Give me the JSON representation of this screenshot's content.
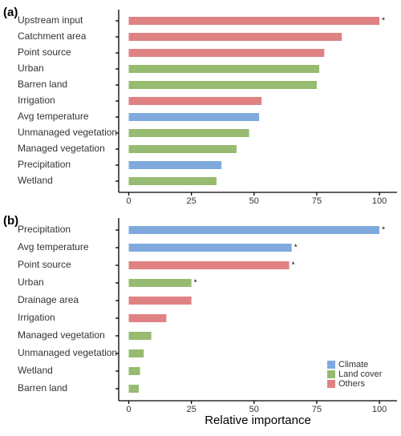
{
  "chart_data": [
    {
      "type": "bar",
      "panel_label": "(a)",
      "categories": [
        "Upstream input",
        "Catchment area",
        "Point source",
        "Urban",
        "Barren land",
        "Irrigation",
        "Avg temperature",
        "Unmanaged vegetation",
        "Managed vegetation",
        "Precipitation",
        "Wetland"
      ],
      "values": [
        100,
        85,
        78,
        76,
        75,
        53,
        52,
        48,
        43,
        37,
        35
      ],
      "colors": [
        "#e08283",
        "#e08283",
        "#e08283",
        "#97bb70",
        "#97bb70",
        "#e08283",
        "#80aadd",
        "#97bb70",
        "#97bb70",
        "#80aadd",
        "#97bb70"
      ],
      "markers": [
        "*",
        null,
        null,
        null,
        null,
        null,
        null,
        null,
        null,
        null,
        null
      ],
      "xlim": [
        -4,
        107
      ],
      "xticks": [
        0,
        25,
        50,
        75,
        100
      ]
    },
    {
      "type": "bar",
      "panel_label": "(b)",
      "categories": [
        "Precipitation",
        "Avg temperature",
        "Point source",
        "Urban",
        "Drainage area",
        "Irrigation",
        "Managed vegetation",
        "Unmanaged vegetation",
        "Wetland",
        "Barren land"
      ],
      "values": [
        100,
        65,
        64,
        25,
        25,
        15,
        9,
        6,
        4.5,
        4
      ],
      "colors": [
        "#80aadd",
        "#80aadd",
        "#e08283",
        "#97bb70",
        "#e08283",
        "#e08283",
        "#97bb70",
        "#97bb70",
        "#97bb70",
        "#97bb70"
      ],
      "markers": [
        "*",
        "*",
        "*",
        "*",
        null,
        null,
        null,
        null,
        null,
        null
      ],
      "xlim": [
        -4,
        107
      ],
      "xticks": [
        0,
        25,
        50,
        75,
        100
      ],
      "xlabel": "Relative importance",
      "legend": [
        {
          "name": "Climate",
          "color": "#80aadd"
        },
        {
          "name": "Land cover",
          "color": "#97bb70"
        },
        {
          "name": "Others",
          "color": "#e08283"
        }
      ]
    }
  ]
}
